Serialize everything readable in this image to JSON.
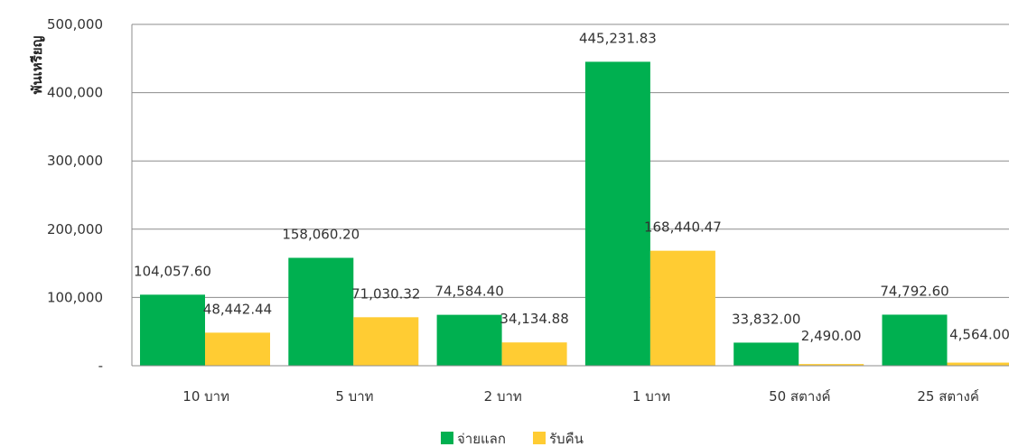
{
  "chart_data": {
    "type": "bar",
    "ylabel": "พันเหรียญ",
    "ylim": [
      0,
      500000
    ],
    "yticks": [
      0,
      100000,
      200000,
      300000,
      400000,
      500000
    ],
    "ytick_labels": [
      "-",
      "100,000",
      "200,000",
      "300,000",
      "400,000",
      "500,000"
    ],
    "categories": [
      "10 บาท",
      "5 บาท",
      "2 บาท",
      "1 บาท",
      "50 สตางค์",
      "25 สตางค์"
    ],
    "series": [
      {
        "name": "จ่ายแลก",
        "color": "#00b050",
        "values": [
          104057.6,
          158060.2,
          74584.4,
          445231.83,
          33832.0,
          74792.6
        ],
        "labels": [
          "104,057.60",
          "158,060.20",
          "74,584.40",
          "445,231.83",
          "33,832.00",
          "74,792.60"
        ]
      },
      {
        "name": "รับคืน",
        "color": "#ffcc33",
        "values": [
          48442.44,
          71030.32,
          34134.88,
          168440.47,
          2490.0,
          4564.0
        ],
        "labels": [
          "48,442.44",
          "71,030.32",
          "34,134.88",
          "168,440.47",
          "2,490.00",
          "4,564.00"
        ]
      }
    ],
    "grid": true,
    "legend_position": "bottom-center"
  }
}
